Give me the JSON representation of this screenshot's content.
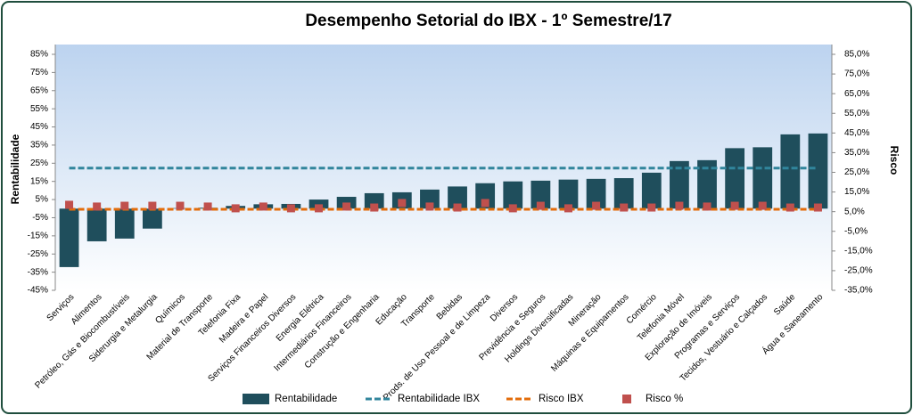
{
  "chart_data": {
    "type": "bar",
    "title": "Desempenho Setorial do IBX - 1º Semestre/17",
    "y_label": "Rentabilidade",
    "y2_label": "Risco",
    "categories": [
      "Serviços",
      "Alimentos",
      "Petróleo, Gás e Biocombustíveis",
      "Siderurgia e Metalurgia",
      "Químicos",
      "Material de Transporte",
      "Telefonia Fixa",
      "Madeira e Papel",
      "Serviços Financeiros Diversos",
      "Energia Elétrica",
      "Intermediários Financeiros",
      "Construção e Engenharia",
      "Educação",
      "Transporte",
      "Bebidas",
      "Prods. de Uso Pessoal e de Limpeza",
      "Diversos",
      "Previdência e Seguros",
      "Holdings Diversificadas",
      "Mineração",
      "Máquinas e Equipamentos",
      "Comércio",
      "Telefonia Móvel",
      "Exploração de Imóveis",
      "Programas e Serviços",
      "Tecidos, Vestuário e Calçados",
      "Saúde",
      "Água e Saneamento"
    ],
    "series": [
      {
        "name": "Rentabilidade",
        "type": "bar",
        "color": "#1f4e5c",
        "values": [
          -32.2,
          -18,
          -16.5,
          -11,
          0.3,
          0.5,
          1.5,
          2.4,
          2.6,
          5,
          6.5,
          8.5,
          9,
          10.5,
          12.2,
          14,
          15,
          15.4,
          16,
          16.4,
          16.8,
          19.8,
          26.2,
          26.7,
          33.3,
          33.8,
          40.9,
          41.4
        ]
      },
      {
        "name": "Rentabilidade IBX",
        "type": "line",
        "color": "#31859c",
        "values": [
          22.3,
          22.3,
          22.3,
          22.3,
          22.3,
          22.3,
          22.3,
          22.3,
          22.3,
          22.3,
          22.3,
          22.3,
          22.3,
          22.3,
          22.3,
          22.3,
          22.3,
          22.3,
          22.3,
          22.3,
          22.3,
          22.3,
          22.3,
          22.3,
          22.3,
          22.3,
          22.3,
          22.3
        ]
      },
      {
        "name": "Risco IBX",
        "type": "line",
        "axis": "y2",
        "color": "#e36c0a",
        "values": [
          6.2,
          6.2,
          6.2,
          6.2,
          6.2,
          6.2,
          6.2,
          6.2,
          6.2,
          6.2,
          6.2,
          6.2,
          6.2,
          6.2,
          6.2,
          6.2,
          6.2,
          6.2,
          6.2,
          6.2,
          6.2,
          6.2,
          6.2,
          6.2,
          6.2,
          6.2,
          6.2,
          6.2
        ]
      },
      {
        "name": "Risco %",
        "type": "scatter",
        "axis": "y2",
        "color": "#c0504d",
        "values": [
          8.5,
          7.6,
          8,
          8,
          8,
          7.6,
          6.7,
          7.6,
          6.7,
          6.7,
          7.6,
          7.1,
          9.4,
          7.6,
          7.1,
          9.4,
          6.7,
          8,
          6.7,
          8,
          7.1,
          7.1,
          8,
          7.6,
          8,
          8,
          7.1,
          7.1
        ]
      }
    ],
    "ylim": [
      -45,
      85
    ],
    "yticks": [
      {
        "value": -45,
        "label": "-45%"
      },
      {
        "value": -35,
        "label": "-35%"
      },
      {
        "value": -25,
        "label": "-25%"
      },
      {
        "value": -15,
        "label": "-15%"
      },
      {
        "value": -5,
        "label": "-5%"
      },
      {
        "value": 5,
        "label": "5%"
      },
      {
        "value": 15,
        "label": "15%"
      },
      {
        "value": 25,
        "label": "25%"
      },
      {
        "value": 35,
        "label": "35%"
      },
      {
        "value": 45,
        "label": "45%"
      },
      {
        "value": 55,
        "label": "55%"
      },
      {
        "value": 65,
        "label": "65%"
      },
      {
        "value": 75,
        "label": "75%"
      },
      {
        "value": 85,
        "label": "85%"
      }
    ],
    "y2lim": [
      -35,
      85
    ],
    "y2ticks": [
      {
        "value": -35,
        "label": "-35,0%"
      },
      {
        "value": -25,
        "label": "-25,0%"
      },
      {
        "value": -15,
        "label": "-15,0%"
      },
      {
        "value": -5,
        "label": "-5,0%"
      },
      {
        "value": 5,
        "label": "5,0%"
      },
      {
        "value": 15,
        "label": "15,0%"
      },
      {
        "value": 25,
        "label": "25,0%"
      },
      {
        "value": 35,
        "label": "35,0%"
      },
      {
        "value": 45,
        "label": "45,0%"
      },
      {
        "value": 55,
        "label": "55,0%"
      },
      {
        "value": 65,
        "label": "65,0%"
      },
      {
        "value": 75,
        "label": "75,0%"
      },
      {
        "value": 85,
        "label": "85,0%"
      }
    ]
  }
}
